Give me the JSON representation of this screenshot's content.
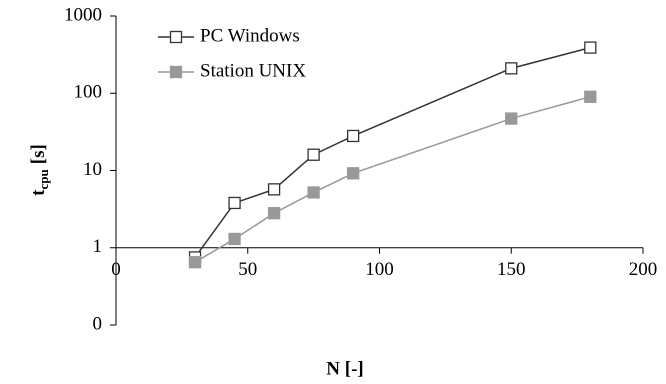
{
  "chart_data": {
    "type": "line",
    "xlabel": "N [-]",
    "ylabel": [
      "t",
      "cpu",
      "[s]"
    ],
    "x": [
      30,
      45,
      60,
      75,
      90,
      150,
      180
    ],
    "series": [
      {
        "name": "PC Windows",
        "color": "#333333",
        "marker": "open-square",
        "values": [
          0.75,
          3.8,
          5.7,
          16,
          28,
          210,
          390
        ]
      },
      {
        "name": "Station UNIX",
        "color": "#999999",
        "marker": "filled-square",
        "values": [
          0.65,
          1.3,
          2.8,
          5.2,
          9.2,
          47,
          90
        ]
      }
    ],
    "xlim": [
      0,
      200
    ],
    "xticks": [
      0,
      50,
      100,
      150,
      200
    ],
    "ylim": [
      0.1,
      1000
    ],
    "yscale": "log",
    "yticks": [
      {
        "value": 0.1,
        "label": "0"
      },
      1,
      10,
      100,
      1000
    ],
    "x_axis_at": 1,
    "legend": "upper left"
  }
}
